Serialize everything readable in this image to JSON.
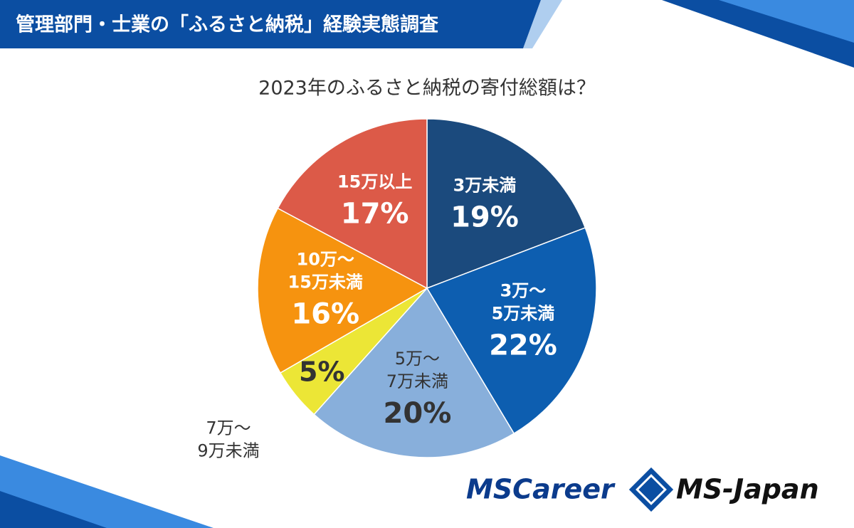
{
  "header": {
    "title": "管理部門・士業の「ふるさと納税」経験実態調査"
  },
  "chart_data": {
    "type": "pie",
    "title": "2023年のふるさと納税の寄付総額は？",
    "categories": [
      [
        "3万未満"
      ],
      [
        "3万～",
        "5万未満"
      ],
      [
        "5万～",
        "7万未満"
      ],
      [
        "7万～",
        "9万未満"
      ],
      [
        "10万～",
        "15万未満"
      ],
      [
        "15万以上"
      ]
    ],
    "values": [
      19,
      22,
      20,
      5,
      16,
      17
    ],
    "value_labels": [
      "19%",
      "22%",
      "20%",
      "5%",
      "16%",
      "17%"
    ],
    "colors": [
      "#1b4a7d",
      "#0d5eb0",
      "#88afdb",
      "#ece636",
      "#f6930f",
      "#dc5a48"
    ]
  },
  "logos": [
    "MSCareer",
    "MS-Japan"
  ]
}
